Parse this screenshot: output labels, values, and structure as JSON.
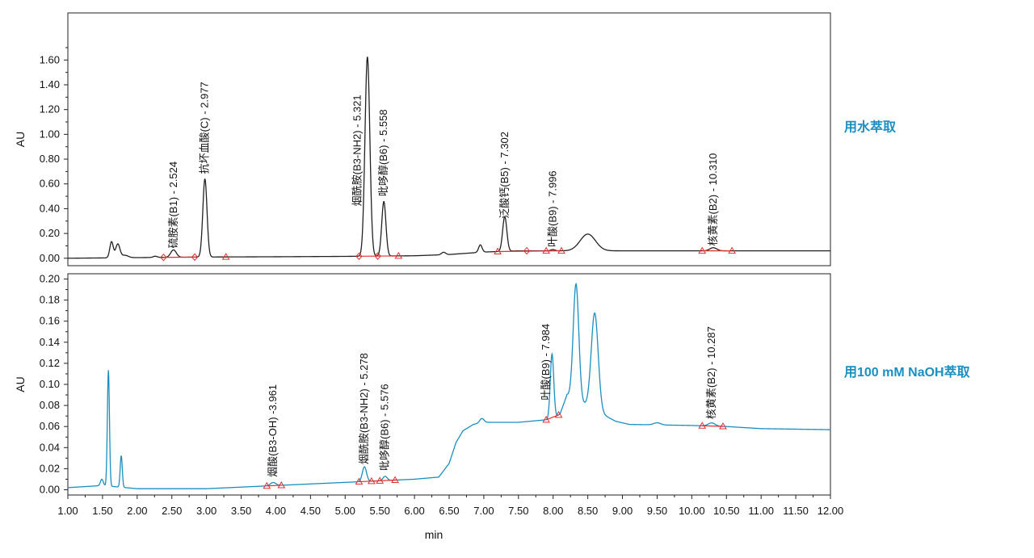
{
  "chart_data": {
    "type": "line",
    "xlabel": "min",
    "x_ticks": [
      "1.00",
      "1.50",
      "2.00",
      "2.50",
      "3.00",
      "3.50",
      "4.00",
      "4.50",
      "5.00",
      "5.50",
      "6.00",
      "6.50",
      "7.00",
      "7.50",
      "8.00",
      "8.50",
      "9.00",
      "9.50",
      "10.00",
      "10.50",
      "11.00",
      "11.50",
      "12.00"
    ],
    "xlim": [
      1.0,
      12.0
    ],
    "grid": false,
    "panels": [
      {
        "label": "用水萃取",
        "ylabel": "AU",
        "ylim": [
          -0.06,
          1.98
        ],
        "y_ticks": [
          "0.00",
          "0.20",
          "0.40",
          "0.60",
          "0.80",
          "1.00",
          "1.20",
          "1.40",
          "1.60"
        ],
        "line_color": "#222222",
        "label_color": "#1a8fc0",
        "series": [
          {
            "baseline": [
              [
                1.0,
                0.0
              ],
              [
                2.0,
                0.005
              ],
              [
                3.0,
                0.01
              ],
              [
                4.0,
                0.012
              ],
              [
                5.0,
                0.015
              ],
              [
                6.0,
                0.02
              ],
              [
                6.5,
                0.03
              ],
              [
                7.0,
                0.05
              ],
              [
                7.5,
                0.06
              ],
              [
                8.0,
                0.06
              ],
              [
                9.0,
                0.06
              ],
              [
                10.0,
                0.06
              ],
              [
                12.0,
                0.06
              ]
            ],
            "peaks": [
              {
                "t": 1.63,
                "h": 0.13,
                "w": 0.025
              },
              {
                "t": 1.72,
                "h": 0.11,
                "w": 0.03
              },
              {
                "t": 1.82,
                "h": 0.02,
                "w": 0.05
              },
              {
                "t": 2.26,
                "h": 0.01,
                "w": 0.03
              },
              {
                "t": 2.524,
                "h": 0.06,
                "w": 0.04
              },
              {
                "t": 2.977,
                "h": 0.63,
                "w": 0.03
              },
              {
                "t": 5.321,
                "h": 1.61,
                "w": 0.035
              },
              {
                "t": 5.558,
                "h": 0.44,
                "w": 0.03
              },
              {
                "t": 6.42,
                "h": 0.02,
                "w": 0.03
              },
              {
                "t": 6.95,
                "h": 0.06,
                "w": 0.025
              },
              {
                "t": 7.302,
                "h": 0.28,
                "w": 0.03
              },
              {
                "t": 7.996,
                "h": 0.01,
                "w": 0.03
              },
              {
                "t": 8.5,
                "h": 0.135,
                "w": 0.11
              },
              {
                "t": 10.31,
                "h": 0.025,
                "w": 0.05
              }
            ]
          }
        ],
        "peak_labels": [
          {
            "text": "硫胺素(B1) - 2.524",
            "t": 2.524,
            "y": 0.08
          },
          {
            "text": "抗坏血酸(C) - 2.977",
            "t": 2.977,
            "y": 0.68
          },
          {
            "text": "烟酰胺(B3-NH2) - 5.321",
            "t": 5.18,
            "y": 0.42
          },
          {
            "text": "吡哆醇(B6) - 5.558",
            "t": 5.558,
            "y": 0.5
          },
          {
            "text": "泛酸钙(B5) - 7.302",
            "t": 7.302,
            "y": 0.32
          },
          {
            "text": "叶酸(B9) - 7.996",
            "t": 7.996,
            "y": 0.09
          },
          {
            "text": "核黄素(B2) - 10.310",
            "t": 10.31,
            "y": 0.1
          }
        ],
        "integration_lines": [
          [
            2.38,
            2.85
          ],
          [
            5.21,
            5.75
          ],
          [
            7.2,
            8.1
          ],
          [
            10.15,
            10.55
          ]
        ],
        "markers": [
          {
            "t": 2.38,
            "shape": "diamond"
          },
          {
            "t": 2.83,
            "shape": "diamond"
          },
          {
            "t": 3.28,
            "shape": "triangle"
          },
          {
            "t": 5.2,
            "shape": "diamond"
          },
          {
            "t": 5.47,
            "shape": "diamond"
          },
          {
            "t": 5.77,
            "shape": "triangle"
          },
          {
            "t": 7.2,
            "shape": "triangle"
          },
          {
            "t": 7.62,
            "shape": "diamond"
          },
          {
            "t": 7.9,
            "shape": "triangle"
          },
          {
            "t": 8.12,
            "shape": "triangle"
          },
          {
            "t": 10.15,
            "shape": "triangle"
          },
          {
            "t": 10.58,
            "shape": "triangle"
          }
        ]
      },
      {
        "label": "用100 mM NaOH萃取",
        "ylabel": "AU",
        "ylim": [
          -0.005,
          0.205
        ],
        "y_ticks": [
          "0.00",
          "0.02",
          "0.04",
          "0.06",
          "0.08",
          "0.10",
          "0.12",
          "0.14",
          "0.16",
          "0.18",
          "0.20"
        ],
        "line_color": "#1a8fc0",
        "label_color": "#1a8fc0",
        "series": [
          {
            "baseline": [
              [
                1.0,
                0.002
              ],
              [
                1.5,
                0.004
              ],
              [
                2.0,
                0.001
              ],
              [
                3.0,
                0.001
              ],
              [
                4.0,
                0.004
              ],
              [
                5.0,
                0.007
              ],
              [
                6.0,
                0.01
              ],
              [
                6.35,
                0.012
              ],
              [
                6.5,
                0.025
              ],
              [
                6.6,
                0.045
              ],
              [
                6.7,
                0.056
              ],
              [
                6.85,
                0.062
              ],
              [
                7.0,
                0.064
              ],
              [
                7.5,
                0.064
              ],
              [
                8.0,
                0.067
              ],
              [
                8.1,
                0.072
              ],
              [
                8.2,
                0.09
              ],
              [
                8.9,
                0.065
              ],
              [
                9.1,
                0.062
              ],
              [
                10.0,
                0.061
              ],
              [
                10.5,
                0.06
              ],
              [
                11.0,
                0.058
              ],
              [
                12.0,
                0.057
              ]
            ],
            "peaks": [
              {
                "t": 1.49,
                "h": 0.006,
                "w": 0.02
              },
              {
                "t": 1.585,
                "h": 0.11,
                "w": 0.015
              },
              {
                "t": 1.77,
                "h": 0.03,
                "w": 0.015
              },
              {
                "t": 3.961,
                "h": 0.003,
                "w": 0.04
              },
              {
                "t": 5.278,
                "h": 0.014,
                "w": 0.03
              },
              {
                "t": 5.576,
                "h": 0.004,
                "w": 0.03
              },
              {
                "t": 6.97,
                "h": 0.004,
                "w": 0.03
              },
              {
                "t": 7.984,
                "h": 0.062,
                "w": 0.025
              },
              {
                "t": 8.33,
                "h": 0.11,
                "w": 0.04
              },
              {
                "t": 8.6,
                "h": 0.092,
                "w": 0.05
              },
              {
                "t": 9.5,
                "h": 0.002,
                "w": 0.05
              },
              {
                "t": 10.287,
                "h": 0.003,
                "w": 0.05
              }
            ]
          }
        ],
        "peak_labels": [
          {
            "text": "烟酸(B3-OH) -3.961",
            "t": 3.961,
            "y": 0.012
          },
          {
            "text": "烟酰胺(B3-NH2) - 5.278",
            "t": 5.278,
            "y": 0.024
          },
          {
            "text": "吡哆醇(B6) - 5.576",
            "t": 5.576,
            "y": 0.018
          },
          {
            "text": "叶酸(B9) - 7.984",
            "t": 7.9,
            "y": 0.085
          },
          {
            "text": "核黄素(B2) - 10.287",
            "t": 10.287,
            "y": 0.067
          }
        ],
        "integration_lines": [
          [
            3.87,
            4.08
          ],
          [
            5.2,
            5.75
          ],
          [
            7.9,
            8.08
          ],
          [
            10.15,
            10.45
          ]
        ],
        "markers": [
          {
            "t": 3.87,
            "shape": "triangle"
          },
          {
            "t": 4.08,
            "shape": "triangle"
          },
          {
            "t": 5.2,
            "shape": "triangle"
          },
          {
            "t": 5.38,
            "shape": "triangle"
          },
          {
            "t": 5.5,
            "shape": "triangle"
          },
          {
            "t": 5.72,
            "shape": "triangle"
          },
          {
            "t": 7.9,
            "shape": "triangle"
          },
          {
            "t": 8.08,
            "shape": "triangle"
          },
          {
            "t": 10.15,
            "shape": "triangle"
          },
          {
            "t": 10.45,
            "shape": "triangle"
          }
        ]
      }
    ]
  }
}
